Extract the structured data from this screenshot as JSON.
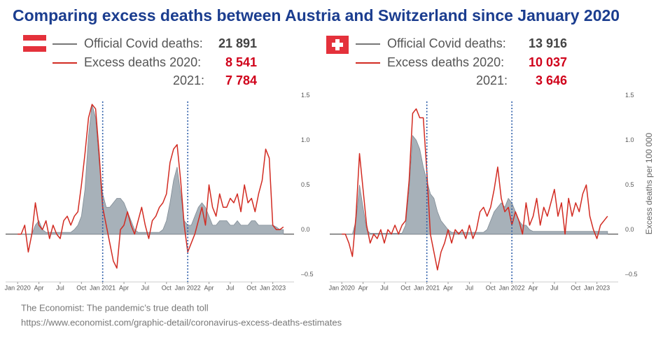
{
  "title": "Comparing excess deaths between Austria and Switzerland since January 2020",
  "source": [
    "The Economist: The pandemic’s true death toll",
    "https://www.economist.com/graphic-detail/coronavirus-excess-deaths-estimates"
  ],
  "chart_data": [
    {
      "type": "line",
      "country_flag": "austria",
      "x": [
        0,
        0.5,
        1,
        1.5,
        2,
        2.5,
        3,
        3.5,
        4,
        4.5,
        5,
        5.5,
        6,
        6.5,
        7,
        7.5,
        8,
        8.5,
        9,
        9.5,
        10,
        10.5,
        11,
        11.5,
        12,
        12.5,
        13,
        13.5,
        14,
        14.5,
        15,
        15.5,
        16,
        16.5,
        17,
        17.5,
        18,
        18.5,
        19,
        19.5,
        20,
        20.5,
        21,
        21.5,
        22,
        22.5,
        23,
        23.5,
        24,
        24.5,
        25,
        25.5,
        26,
        26.5,
        27,
        27.5,
        28,
        28.5,
        29,
        29.5,
        30,
        30.5,
        31,
        31.5,
        32,
        32.5,
        33,
        33.5,
        34,
        34.5,
        35,
        35.5,
        36,
        36.5,
        37,
        37.5
      ],
      "series": [
        {
          "name": "Official Covid deaths:",
          "color": "#a7b1b9",
          "style": "area",
          "total": {
            "value": 21891,
            "label": "21 891"
          },
          "values": [
            0,
            0,
            0,
            0,
            0,
            0.1,
            0.15,
            0.05,
            0.02,
            0.02,
            0.02,
            0.02,
            0.02,
            0.02,
            0.02,
            0.02,
            0.05,
            0.1,
            0.2,
            0.5,
            1.1,
            1.45,
            1.3,
            0.8,
            0.45,
            0.3,
            0.3,
            0.35,
            0.4,
            0.4,
            0.35,
            0.25,
            0.15,
            0.05,
            0.02,
            0.02,
            0.02,
            0.02,
            0.02,
            0.02,
            0.02,
            0.05,
            0.15,
            0.35,
            0.6,
            0.75,
            0.45,
            0.15,
            0.1,
            0.1,
            0.2,
            0.3,
            0.35,
            0.3,
            0.2,
            0.1,
            0.1,
            0.15,
            0.15,
            0.15,
            0.1,
            0.1,
            0.15,
            0.1,
            0.1,
            0.1,
            0.15,
            0.15,
            0.1,
            0.1,
            0.1,
            0.1,
            0.1,
            0.08,
            0.05,
            0.05
          ]
        },
        {
          "name": "Excess deaths 2020:",
          "color": "#d22b22",
          "style": "line",
          "total": {
            "value": 8541,
            "label": "8 541"
          },
          "values": [
            0,
            0,
            0.1,
            -0.2,
            0,
            0.35,
            0.1,
            0.05,
            0.15,
            -0.05,
            0.1,
            0,
            -0.05,
            0.15,
            0.2,
            0.1,
            0.2,
            0.25,
            0.55,
            0.9,
            1.3,
            1.45,
            1.4,
            0.9,
            0.3,
            0.1,
            -0.1,
            -0.3,
            -0.38,
            0.05,
            0.1,
            0.25,
            0.1,
            0,
            0.15,
            0.3,
            0.1,
            -0.05,
            0.15,
            0.2,
            0.3,
            0.35,
            0.45,
            0.8,
            0.95,
            1.0,
            0.6,
            0.1,
            -0.2,
            -0.1,
            0,
            0.15,
            0.3,
            0.1,
            0.55,
            0.3,
            0.2,
            0.45,
            0.3,
            0.3,
            0.4,
            0.35,
            0.45,
            0.25,
            0.55,
            0.35,
            0.4,
            0.25,
            0.45,
            0.6,
            0.95,
            0.85,
            0.1,
            0.05,
            0.05,
            0.08
          ]
        }
      ],
      "extra_total": {
        "name": "2021:",
        "value": 7784,
        "label": "7 784"
      },
      "xlim": [
        -1.7,
        39
      ],
      "xticks": [
        {
          "value": 0,
          "label": "Jan 2020"
        },
        {
          "value": 3,
          "label": "Apr"
        },
        {
          "value": 6,
          "label": "Jul"
        },
        {
          "value": 9,
          "label": "Oct"
        },
        {
          "value": 12,
          "label": "Jan 2021"
        },
        {
          "value": 15,
          "label": "Apr"
        },
        {
          "value": 18,
          "label": "Jul"
        },
        {
          "value": 21,
          "label": "Oct"
        },
        {
          "value": 24,
          "label": "Jan 2022"
        },
        {
          "value": 27,
          "label": "Apr"
        },
        {
          "value": 30,
          "label": "Jul"
        },
        {
          "value": 33,
          "label": "Oct"
        },
        {
          "value": 36,
          "label": "Jan 2023"
        }
      ],
      "ylim": [
        -0.55,
        1.6
      ],
      "yticks": [
        {
          "value": -0.5,
          "label": "–0.5"
        },
        {
          "value": 0,
          "label": "0.0"
        },
        0.5,
        {
          "value": 1,
          "label": "1.0"
        },
        1.5
      ],
      "vlines": [
        12,
        24
      ]
    },
    {
      "type": "line",
      "country_flag": "switzerland",
      "x": [
        0,
        0.5,
        1,
        1.5,
        2,
        2.5,
        3,
        3.5,
        4,
        4.5,
        5,
        5.5,
        6,
        6.5,
        7,
        7.5,
        8,
        8.5,
        9,
        9.5,
        10,
        10.5,
        11,
        11.5,
        12,
        12.5,
        13,
        13.5,
        14,
        14.5,
        15,
        15.5,
        16,
        16.5,
        17,
        17.5,
        18,
        18.5,
        19,
        19.5,
        20,
        20.5,
        21,
        21.5,
        22,
        22.5,
        23,
        23.5,
        24,
        24.5,
        25,
        25.5,
        26,
        26.5,
        27,
        27.5,
        28,
        28.5,
        29,
        29.5,
        30,
        30.5,
        31,
        31.5,
        32,
        32.5,
        33,
        33.5,
        34,
        34.5,
        35,
        35.5,
        36,
        36.5,
        37,
        37.5
      ],
      "series": [
        {
          "name": "Official Covid deaths:",
          "color": "#a7b1b9",
          "style": "area",
          "total": {
            "value": 13916,
            "label": "13 916"
          },
          "values": [
            0,
            0,
            0,
            0,
            0.15,
            0.55,
            0.3,
            0.05,
            0.01,
            0.01,
            0.01,
            0.01,
            0.01,
            0.01,
            0.01,
            0.01,
            0.01,
            0.01,
            0.1,
            0.5,
            1.1,
            1.05,
            0.95,
            0.75,
            0.6,
            0.45,
            0.4,
            0.25,
            0.15,
            0.1,
            0.05,
            0.02,
            0.02,
            0.02,
            0.02,
            0.02,
            0.02,
            0.02,
            0.02,
            0.02,
            0.02,
            0.05,
            0.15,
            0.25,
            0.3,
            0.35,
            0.3,
            0.4,
            0.35,
            0.25,
            0.15,
            0.1,
            0.1,
            0.05,
            0.03,
            0.03,
            0.03,
            0.03,
            0.03,
            0.03,
            0.03,
            0.03,
            0.03,
            0.03,
            0.03,
            0.03,
            0.03,
            0.03,
            0.03,
            0.03,
            0.03,
            0.03,
            0.03,
            0.03,
            0.03,
            0.03
          ]
        },
        {
          "name": "Excess deaths 2020:",
          "color": "#d22b22",
          "style": "line",
          "total": {
            "value": 10037,
            "label": "10 037"
          },
          "values": [
            0,
            0,
            -0.1,
            -0.25,
            0.2,
            0.9,
            0.5,
            0.1,
            -0.1,
            0,
            -0.05,
            0.05,
            -0.1,
            0.05,
            0,
            0.1,
            0,
            0.1,
            0.15,
            0.6,
            1.35,
            1.4,
            1.3,
            1.3,
            0.7,
            0,
            -0.2,
            -0.4,
            -0.2,
            -0.1,
            0.05,
            -0.1,
            0.05,
            0,
            0.05,
            -0.05,
            0.1,
            -0.05,
            0.05,
            0.25,
            0.3,
            0.2,
            0.3,
            0.5,
            0.75,
            0.4,
            0.25,
            0.3,
            0.1,
            0.25,
            0.15,
            0,
            0.35,
            0.1,
            0.2,
            0.4,
            0.1,
            0.3,
            0.2,
            0.35,
            0.5,
            0.2,
            0.35,
            0,
            0.4,
            0.2,
            0.35,
            0.25,
            0.45,
            0.55,
            0.2,
            0.05,
            -0.05,
            0.1,
            0.15,
            0.2
          ]
        }
      ],
      "extra_total": {
        "name": "2021:",
        "value": 3646,
        "label": "3 646"
      },
      "xlim": [
        -1.7,
        39
      ],
      "xticks": [
        {
          "value": 0,
          "label": "Jan 2020"
        },
        {
          "value": 3,
          "label": "Apr"
        },
        {
          "value": 6,
          "label": "Jul"
        },
        {
          "value": 9,
          "label": "Oct"
        },
        {
          "value": 12,
          "label": "Jan 2021"
        },
        {
          "value": 15,
          "label": "Apr"
        },
        {
          "value": 18,
          "label": "Jul"
        },
        {
          "value": 21,
          "label": "Oct"
        },
        {
          "value": 24,
          "label": "Jan 2022"
        },
        {
          "value": 27,
          "label": "Apr"
        },
        {
          "value": 30,
          "label": "Jul"
        },
        {
          "value": 33,
          "label": "Oct"
        },
        {
          "value": 36,
          "label": "Jan 2023"
        }
      ],
      "ylim": [
        -0.55,
        1.6
      ],
      "yticks": [
        {
          "value": -0.5,
          "label": "–0.5"
        },
        {
          "value": 0,
          "label": "0.0"
        },
        0.5,
        {
          "value": 1,
          "label": "1.0"
        },
        1.5
      ],
      "vlines": [
        12,
        24
      ],
      "ylabel": "Excess deaths per 100 000"
    }
  ]
}
